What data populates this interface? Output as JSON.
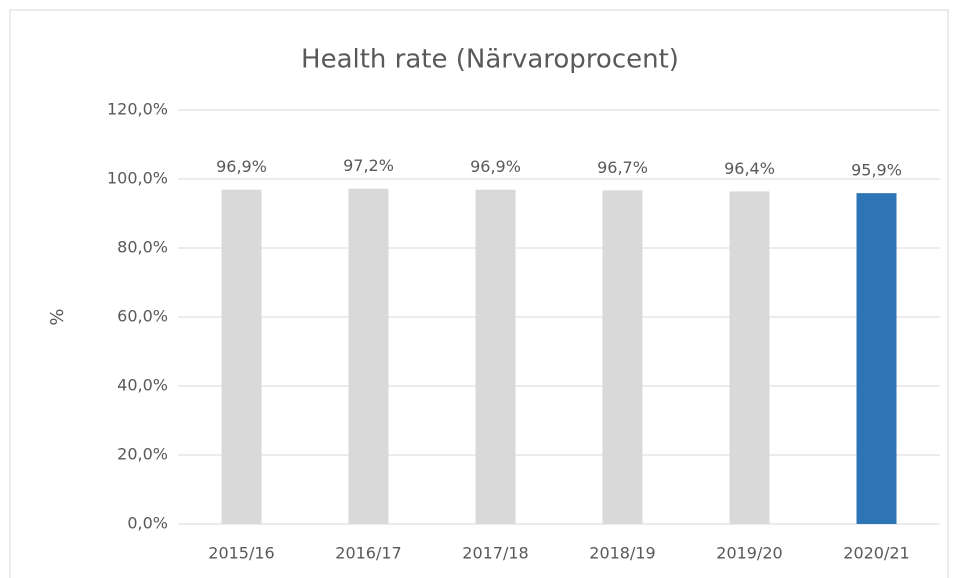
{
  "chart_data": {
    "type": "bar",
    "title": "Health rate (Närvaroprocent)",
    "y_label": "%",
    "categories": [
      "2015/16",
      "2016/17",
      "2017/18",
      "2018/19",
      "2019/20",
      "2020/21"
    ],
    "values": [
      96.9,
      97.2,
      96.9,
      96.7,
      96.4,
      95.9
    ],
    "value_labels": [
      "96,9%",
      "97,2%",
      "96,9%",
      "96,7%",
      "96,4%",
      "95,9%"
    ],
    "colors": [
      "#d9d9d9",
      "#d9d9d9",
      "#d9d9d9",
      "#d9d9d9",
      "#d9d9d9",
      "#2e75b6"
    ],
    "ylim": [
      0,
      120
    ],
    "yticks": [
      {
        "value": 0,
        "label": "0,0%"
      },
      {
        "value": 20,
        "label": "20,0%"
      },
      {
        "value": 40,
        "label": "40,0%"
      },
      {
        "value": 60,
        "label": "60,0%"
      },
      {
        "value": 80,
        "label": "80,0%"
      },
      {
        "value": 100,
        "label": "100,0%"
      },
      {
        "value": 120,
        "label": "120,0%"
      }
    ],
    "grid": true
  }
}
